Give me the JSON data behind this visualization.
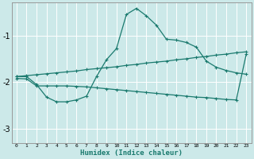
{
  "background_color": "#cce9e9",
  "grid_color": "#ffffff",
  "line_color": "#1a7a6e",
  "x_label": "Humidex (Indice chaleur)",
  "x_ticks": [
    0,
    1,
    2,
    3,
    4,
    5,
    6,
    7,
    8,
    9,
    10,
    11,
    12,
    13,
    14,
    15,
    16,
    17,
    18,
    19,
    20,
    21,
    22,
    23
  ],
  "ylim": [
    -3.3,
    -0.3
  ],
  "xlim": [
    -0.5,
    23.5
  ],
  "yticks": [
    -3,
    -2,
    -1
  ],
  "curve_main_x": [
    0,
    1,
    2,
    3,
    4,
    5,
    6,
    7,
    8,
    9,
    10,
    11,
    12,
    13,
    14,
    15,
    16,
    17,
    18,
    19,
    20,
    21,
    22,
    23
  ],
  "curve_main_y": [
    -1.88,
    -1.88,
    -2.05,
    -2.32,
    -2.42,
    -2.42,
    -2.38,
    -2.3,
    -1.88,
    -1.52,
    -1.28,
    -0.55,
    -0.42,
    -0.58,
    -0.78,
    -1.08,
    -1.1,
    -1.15,
    -1.25,
    -1.55,
    -1.68,
    -1.75,
    -1.8,
    -1.83
  ],
  "curve_upper_x": [
    0,
    1,
    2,
    3,
    4,
    5,
    6,
    7,
    8,
    9,
    10,
    11,
    12,
    13,
    14,
    15,
    16,
    17,
    18,
    19,
    20,
    21,
    22,
    23
  ],
  "curve_upper_y": [
    -1.88,
    -1.86,
    -1.84,
    -1.82,
    -1.8,
    -1.78,
    -1.76,
    -1.73,
    -1.71,
    -1.69,
    -1.67,
    -1.64,
    -1.62,
    -1.59,
    -1.57,
    -1.55,
    -1.52,
    -1.5,
    -1.47,
    -1.45,
    -1.42,
    -1.4,
    -1.37,
    -1.35
  ],
  "curve_lower_x": [
    0,
    1,
    2,
    3,
    4,
    5,
    6,
    7,
    8,
    9,
    10,
    11,
    12,
    13,
    14,
    15,
    16,
    17,
    18,
    19,
    20,
    21,
    22,
    23
  ],
  "curve_lower_y": [
    -1.92,
    -1.93,
    -2.08,
    -2.08,
    -2.08,
    -2.08,
    -2.09,
    -2.1,
    -2.12,
    -2.14,
    -2.16,
    -2.18,
    -2.2,
    -2.22,
    -2.24,
    -2.26,
    -2.28,
    -2.3,
    -2.32,
    -2.33,
    -2.35,
    -2.37,
    -2.38,
    -1.4
  ],
  "marker": "+"
}
